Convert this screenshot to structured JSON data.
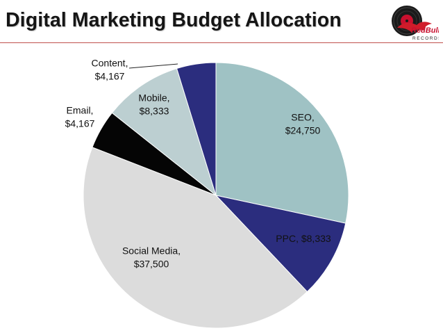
{
  "header": {
    "title": "Digital Marketing Budget Allocation",
    "rule_color": "#c0504d"
  },
  "logo": {
    "text_top": "RedBull",
    "text_bottom": "RECORDS"
  },
  "chart_data": {
    "type": "pie",
    "title": "Digital Marketing Budget Allocation",
    "slices": [
      {
        "label": "SEO",
        "value": 24750,
        "value_label": "$24,750",
        "color": "#9fc2c4"
      },
      {
        "label": "PPC",
        "value": 8333,
        "value_label": "$8,333",
        "color": "#2b2d7e"
      },
      {
        "label": "Social Media",
        "value": 37500,
        "value_label": "$37,500",
        "color": "#dcdcdc"
      },
      {
        "label": "Email",
        "value": 4167,
        "value_label": "$4,167",
        "color": "#050505"
      },
      {
        "label": "Mobile",
        "value": 8333,
        "value_label": "$8,333",
        "color": "#bccfd1"
      },
      {
        "label": "Content",
        "value": 4167,
        "value_label": "$4,167",
        "color": "#2b2d7e"
      }
    ],
    "data_labels": [
      {
        "lines": [
          "SEO,",
          "$24,750"
        ]
      },
      {
        "lines": [
          "PPC,  $8,333"
        ]
      },
      {
        "lines": [
          "Social Media,",
          "$37,500"
        ]
      },
      {
        "lines": [
          "Email,",
          "$4,167"
        ]
      },
      {
        "lines": [
          "Mobile,",
          "$8,333"
        ]
      },
      {
        "lines": [
          "Content,",
          "$4,167"
        ]
      }
    ]
  }
}
